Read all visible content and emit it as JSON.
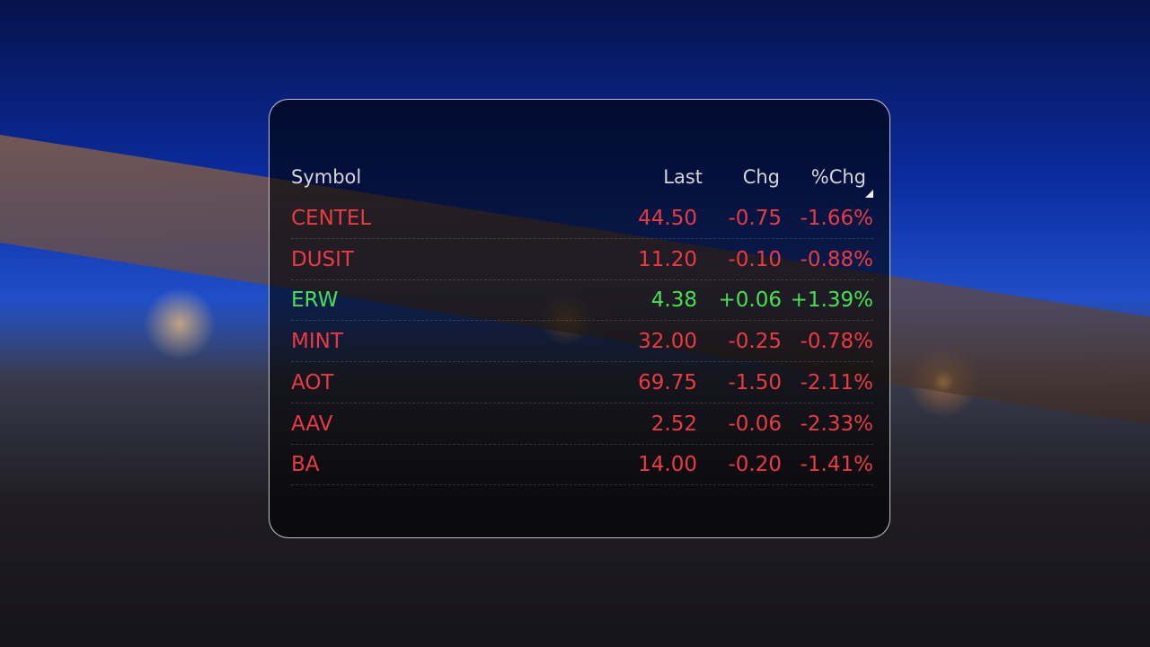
{
  "table": {
    "header": [
      "Symbol",
      "Last",
      "Chg",
      "%Chg"
    ],
    "rows": [
      [
        "CENTEL",
        "44.50",
        "-0.75",
        "-1.66%"
      ],
      [
        "DUSIT",
        "11.20",
        "-0.10",
        "-0.88%"
      ],
      [
        "ERW",
        "4.38",
        "+0.06",
        "+1.39%"
      ],
      [
        "MINT",
        "32.00",
        "-0.25",
        "-0.78%"
      ],
      [
        "AOT",
        "69.75",
        "-1.50",
        "-2.11%"
      ],
      [
        "AAV",
        "2.52",
        "-0.06",
        "-2.33%"
      ],
      [
        "BA",
        "14.00",
        "-0.20",
        "-1.41%"
      ]
    ]
  }
}
